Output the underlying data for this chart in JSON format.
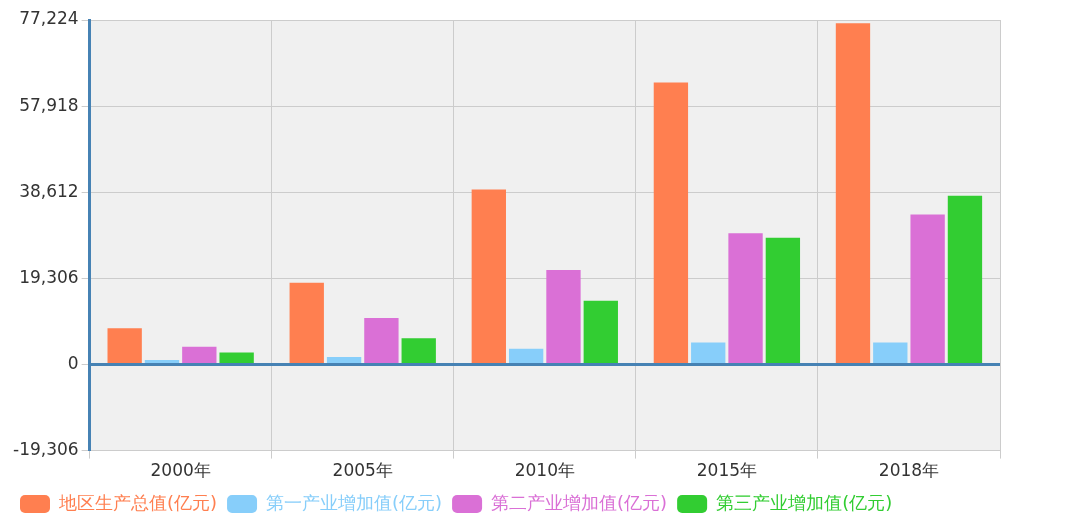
{
  "chart_data": {
    "type": "bar",
    "categories": [
      "2000年",
      "2005年",
      "2010年",
      "2015年",
      "2018年"
    ],
    "series": [
      {
        "name": "地区生产总值(亿元)",
        "color": "#ff7f50",
        "values": [
          8100,
          18300,
          39200,
          63200,
          76500
        ]
      },
      {
        "name": "第一产业增加值(亿元)",
        "color": "#87cefa",
        "values": [
          1000,
          1700,
          3500,
          4900,
          4900
        ]
      },
      {
        "name": "第二产业增加值(亿元)",
        "color": "#da70d6",
        "values": [
          4000,
          10400,
          21200,
          29400,
          33600
        ]
      },
      {
        "name": "第三产业增加值(亿元)",
        "color": "#32cd32",
        "values": [
          2700,
          5900,
          14300,
          28400,
          37800
        ]
      }
    ],
    "ylim": [
      -19306,
      77224
    ],
    "yticks": [
      {
        "value": -19306,
        "label": "-19,306"
      },
      {
        "value": 0,
        "label": "0"
      },
      {
        "value": 19306,
        "label": "19,306"
      },
      {
        "value": 38612,
        "label": "38,612"
      },
      {
        "value": 57918,
        "label": "57,918"
      },
      {
        "value": 77224,
        "label": "77,224"
      }
    ],
    "ref_lines": [
      {
        "axis": "y",
        "value": 0,
        "color": "#4682b4"
      }
    ],
    "grid": true,
    "legend": "bottom"
  }
}
